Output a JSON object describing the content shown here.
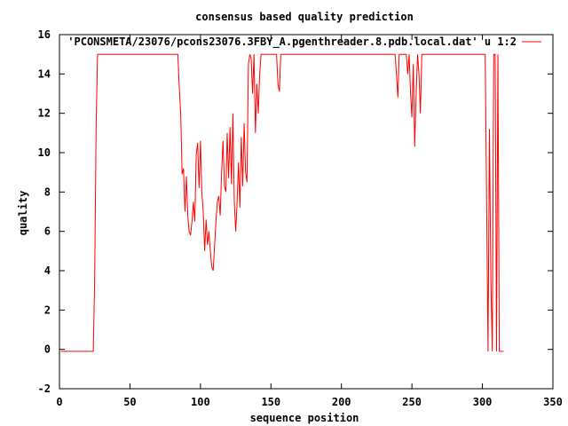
{
  "chart_data": {
    "type": "line",
    "title": "consensus based quality prediction",
    "xlabel": "sequence position",
    "ylabel": "quality",
    "xlim": [
      0,
      350
    ],
    "ylim": [
      -2,
      16
    ],
    "xticks": [
      0,
      50,
      100,
      150,
      200,
      250,
      300,
      350
    ],
    "yticks": [
      -2,
      0,
      2,
      4,
      6,
      8,
      10,
      12,
      14,
      16
    ],
    "grid": false,
    "legend_position": "top-right",
    "series": [
      {
        "name": "'PCONSMETA/23076/pcons23076.3FBY_A.pgenthreader.8.pdb.local.dat' u 1:2",
        "color": "#ff0000",
        "points": [
          [
            1,
            -0.1
          ],
          [
            10,
            -0.1
          ],
          [
            20,
            -0.1
          ],
          [
            24,
            -0.1
          ],
          [
            25,
            3.7
          ],
          [
            26,
            11.3
          ],
          [
            27,
            15.0
          ],
          [
            40,
            15.0
          ],
          [
            60,
            15.0
          ],
          [
            80,
            15.0
          ],
          [
            84,
            15.0
          ],
          [
            85,
            13.3
          ],
          [
            86,
            12.0
          ],
          [
            87,
            8.9
          ],
          [
            88,
            9.2
          ],
          [
            89,
            7.0
          ],
          [
            90,
            8.8
          ],
          [
            91,
            6.8
          ],
          [
            92,
            6.0
          ],
          [
            93,
            5.8
          ],
          [
            94,
            6.5
          ],
          [
            95,
            7.5
          ],
          [
            96,
            6.5
          ],
          [
            97,
            9.9
          ],
          [
            98,
            10.5
          ],
          [
            99,
            8.2
          ],
          [
            100,
            10.6
          ],
          [
            101,
            8.0
          ],
          [
            102,
            7.0
          ],
          [
            103,
            5.0
          ],
          [
            104,
            6.6
          ],
          [
            105,
            5.3
          ],
          [
            106,
            6.0
          ],
          [
            107,
            5.0
          ],
          [
            108,
            4.2
          ],
          [
            109,
            4.0
          ],
          [
            110,
            5.2
          ],
          [
            111,
            6.5
          ],
          [
            112,
            7.5
          ],
          [
            113,
            7.8
          ],
          [
            114,
            6.8
          ],
          [
            115,
            9.0
          ],
          [
            116,
            10.6
          ],
          [
            117,
            8.3
          ],
          [
            118,
            8.0
          ],
          [
            119,
            11.0
          ],
          [
            120,
            8.7
          ],
          [
            121,
            11.3
          ],
          [
            122,
            8.4
          ],
          [
            123,
            12.0
          ],
          [
            124,
            7.5
          ],
          [
            125,
            6.0
          ],
          [
            126,
            7.5
          ],
          [
            127,
            9.5
          ],
          [
            128,
            7.2
          ],
          [
            129,
            10.8
          ],
          [
            130,
            8.3
          ],
          [
            131,
            11.5
          ],
          [
            132,
            9.0
          ],
          [
            133,
            8.5
          ],
          [
            134,
            14.5
          ],
          [
            135,
            15.0
          ],
          [
            136,
            14.8
          ],
          [
            137,
            13.0
          ],
          [
            138,
            15.0
          ],
          [
            139,
            11.0
          ],
          [
            140,
            13.5
          ],
          [
            141,
            12.0
          ],
          [
            142,
            14.0
          ],
          [
            143,
            15.0
          ],
          [
            150,
            15.0
          ],
          [
            154,
            15.0
          ],
          [
            155,
            13.5
          ],
          [
            156,
            13.1
          ],
          [
            157,
            15.0
          ],
          [
            170,
            15.0
          ],
          [
            200,
            15.0
          ],
          [
            230,
            15.0
          ],
          [
            238,
            15.0
          ],
          [
            239,
            14.0
          ],
          [
            240,
            12.8
          ],
          [
            241,
            15.0
          ],
          [
            246,
            15.0
          ],
          [
            247,
            14.0
          ],
          [
            248,
            15.0
          ],
          [
            249,
            13.0
          ],
          [
            250,
            11.8
          ],
          [
            251,
            14.5
          ],
          [
            252,
            10.3
          ],
          [
            253,
            13.0
          ],
          [
            254,
            15.0
          ],
          [
            255,
            14.0
          ],
          [
            256,
            12.0
          ],
          [
            257,
            15.0
          ],
          [
            270,
            15.0
          ],
          [
            290,
            15.0
          ],
          [
            302,
            15.0
          ],
          [
            303,
            7.5
          ],
          [
            304,
            -0.1
          ],
          [
            305,
            11.2
          ],
          [
            306,
            3.5
          ],
          [
            307,
            -0.1
          ],
          [
            308,
            15.0
          ],
          [
            309,
            15.0
          ],
          [
            310,
            -0.1
          ],
          [
            311,
            15.0
          ],
          [
            312,
            -0.1
          ],
          [
            315,
            -0.1
          ]
        ]
      }
    ]
  }
}
